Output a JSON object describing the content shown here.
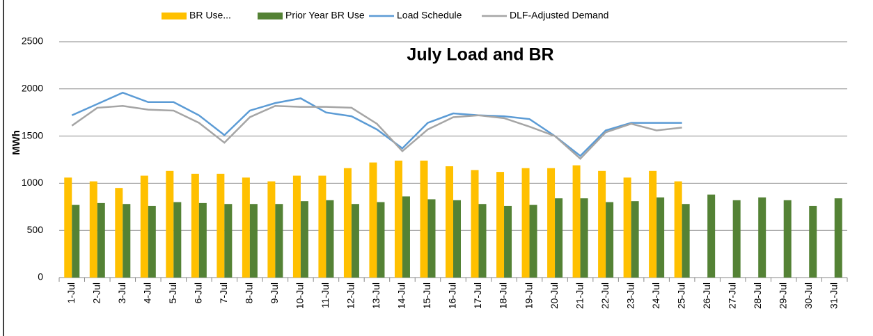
{
  "chart_data": {
    "type": "bar",
    "title": "July Load and BR",
    "y_label": "MWh",
    "categories": [
      "1-Jul",
      "2-Jul",
      "3-Jul",
      "4-Jul",
      "5-Jul",
      "6-Jul",
      "7-Jul",
      "8-Jul",
      "9-Jul",
      "10-Jul",
      "11-Jul",
      "12-Jul",
      "13-Jul",
      "14-Jul",
      "15-Jul",
      "16-Jul",
      "17-Jul",
      "18-Jul",
      "19-Jul",
      "20-Jul",
      "21-Jul",
      "22-Jul",
      "23-Jul",
      "24-Jul",
      "25-Jul",
      "26-Jul",
      "27-Jul",
      "28-Jul",
      "29-Jul",
      "30-Jul",
      "31-Jul"
    ],
    "series": [
      {
        "name": "BR Use...",
        "type": "bar",
        "color": "#ffc000",
        "values": [
          1060,
          1020,
          950,
          1080,
          1130,
          1100,
          1100,
          1060,
          1020,
          1080,
          1080,
          1160,
          1220,
          1240,
          1240,
          1180,
          1140,
          1120,
          1160,
          1160,
          1190,
          1130,
          1060,
          1130,
          1020,
          null,
          null,
          null,
          null,
          null,
          null
        ]
      },
      {
        "name": "Prior Year BR Use",
        "type": "bar",
        "color": "#548235",
        "values": [
          770,
          790,
          780,
          760,
          800,
          790,
          780,
          780,
          780,
          810,
          820,
          780,
          800,
          860,
          830,
          820,
          780,
          760,
          770,
          840,
          840,
          800,
          810,
          850,
          780,
          880,
          820,
          850,
          820,
          760,
          840
        ]
      },
      {
        "name": "Load Schedule",
        "type": "line",
        "color": "#5b9bd5",
        "values": [
          1720,
          1840,
          1960,
          1860,
          1860,
          1720,
          1510,
          1770,
          1850,
          1900,
          1750,
          1710,
          1570,
          1370,
          1640,
          1740,
          1720,
          1710,
          1680,
          1500,
          1290,
          1560,
          1640,
          1640,
          1640,
          null,
          null,
          null,
          null,
          null,
          null
        ]
      },
      {
        "name": "DLF-Adjusted Demand",
        "type": "line",
        "color": "#a5a5a5",
        "values": [
          1610,
          1800,
          1820,
          1780,
          1770,
          1640,
          1430,
          1700,
          1820,
          1810,
          1810,
          1800,
          1630,
          1340,
          1570,
          1700,
          1720,
          1690,
          1600,
          1500,
          1260,
          1540,
          1630,
          1560,
          1590,
          null,
          null,
          null,
          null,
          null,
          null
        ]
      }
    ],
    "ylim": [
      0,
      2500
    ],
    "yticks": [
      0,
      500,
      1000,
      1500,
      2000,
      2500
    ],
    "grid": true,
    "legend": "top"
  }
}
